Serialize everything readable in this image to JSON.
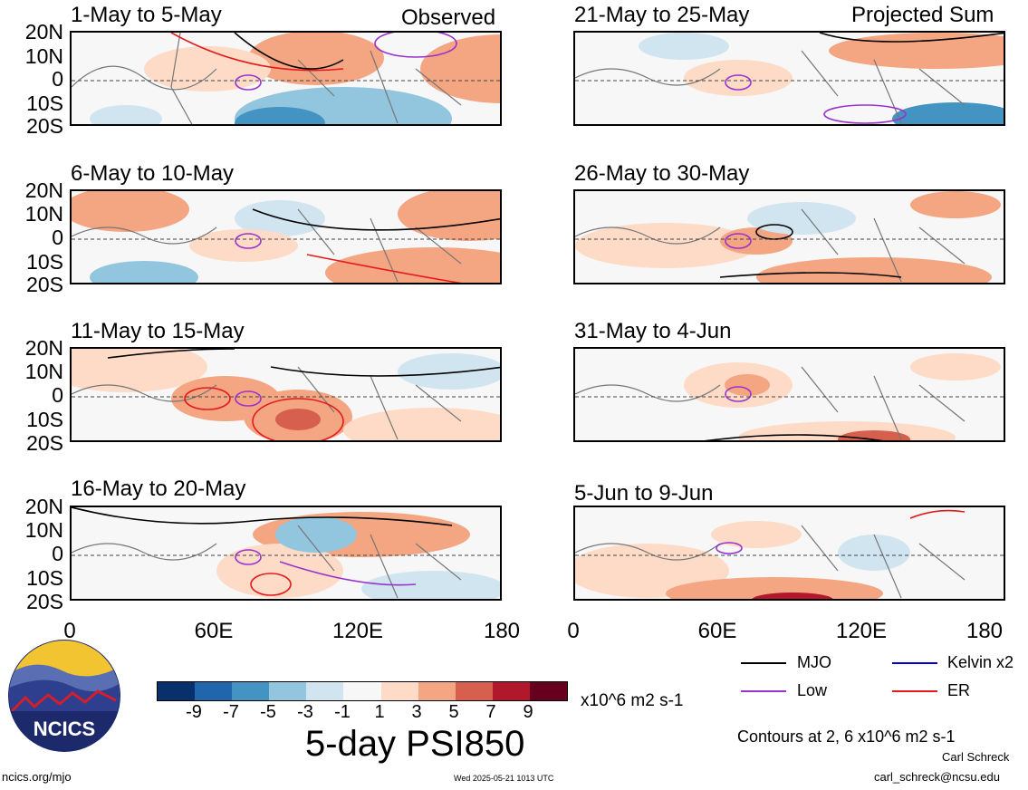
{
  "header": {
    "left_tag": "Observed",
    "right_tag": "Projected Sum"
  },
  "panels_left": [
    {
      "title": "1-May to 5-May"
    },
    {
      "title": "6-May to 10-May"
    },
    {
      "title": "11-May to 15-May"
    },
    {
      "title": "16-May to 20-May"
    }
  ],
  "panels_right": [
    {
      "title": "21-May to 25-May"
    },
    {
      "title": "26-May to 30-May"
    },
    {
      "title": "31-May to 4-Jun"
    },
    {
      "title": "5-Jun to 9-Jun"
    }
  ],
  "lat_labels": [
    "20N",
    "10N",
    "0",
    "10S",
    "20S"
  ],
  "lon_labels": [
    "0",
    "60E",
    "120E",
    "180"
  ],
  "colorbar": {
    "colors": [
      "#08306b",
      "#2166ac",
      "#4393c3",
      "#92c5de",
      "#d1e5f0",
      "#f7f7f7",
      "#fddbc7",
      "#f4a582",
      "#d6604d",
      "#b2182b",
      "#67001f"
    ],
    "ticks": [
      "-9",
      "-7",
      "-5",
      "-3",
      "-1",
      "1",
      "3",
      "5",
      "7",
      "9"
    ],
    "units": "x10^6 m2 s-1"
  },
  "title": "5-day PSI850",
  "legend": {
    "items": [
      {
        "label": "MJO",
        "color": "#000000"
      },
      {
        "label": "Kelvin x2",
        "color": "#0000cc"
      },
      {
        "label": "Low",
        "color": "#9933cc"
      },
      {
        "label": "ER",
        "color": "#e51a1a"
      }
    ],
    "contours_note": "Contours at 2, 6 x10^6 m2 s-1"
  },
  "logo": {
    "text": "NCICS"
  },
  "footer": {
    "url": "ncics.org/mjo",
    "timestamp": "Wed 2025-05-21 1013 UTC",
    "author": "Carl Schreck",
    "email": "carl_schreck@ncsu.edu"
  }
}
